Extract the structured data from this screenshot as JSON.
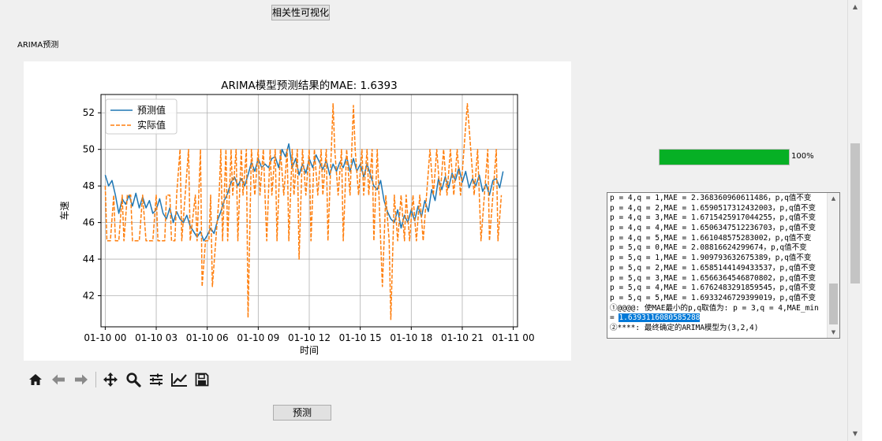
{
  "buttons": {
    "correlation": "相关性可视化",
    "predict": "预测"
  },
  "section_label": "ARIMA预测",
  "progress": {
    "value": 1.0,
    "text": "100%",
    "color": "#06b025"
  },
  "toolbar_icons": [
    "home-icon",
    "back-arrow-icon",
    "forward-arrow-icon",
    "pan-icon",
    "zoom-icon",
    "configure-subplots-icon",
    "edit-axis-icon",
    "save-icon"
  ],
  "log": {
    "lines": [
      "p = 4,q = 1,MAE = 2.368360960611486，p,q值不变",
      "p = 4,q = 2,MAE = 1.6590517312432003，p,q值不变",
      "p = 4,q = 3,MAE = 1.6715425917044255，p,q值不变",
      "p = 4,q = 4,MAE = 1.6506347512236703，p,q值不变",
      "p = 4,q = 5,MAE = 1.661048575283002，p,q值不变",
      "p = 5,q = 0,MAE = 2.08816624299674，p,q值不变",
      "p = 5,q = 1,MAE = 1.909793632675389，p,q值不变",
      "p = 5,q = 2,MAE = 1.6585144149433537，p,q值不变",
      "p = 5,q = 3,MAE = 1.6566364546870802，p,q值不变",
      "p = 5,q = 4,MAE = 1.6762483291859545，p,q值不变",
      "p = 5,q = 5,MAE = 1.6933246729399019，p,q值不变",
      "①@@@@: 使MAE最小的p,q取值为: p = 3,q = 4,MAE_min",
      "= ",
      "②****: 最终确定的ARIMA模型为(3,2,4)"
    ],
    "highlighted": "1.6393116080585288"
  },
  "chart_data": {
    "type": "line",
    "title": "ARIMA模型预测结果的MAE: 1.6393",
    "xlabel": "时间",
    "ylabel": "车速",
    "xticks": [
      "01-10 00",
      "01-10 03",
      "01-10 06",
      "01-10 09",
      "01-10 12",
      "01-10 15",
      "01-10 18",
      "01-10 21",
      "01-11 00"
    ],
    "xlim": [
      -0.25,
      24.25
    ],
    "ylim": [
      40.3,
      53.0
    ],
    "yticks": [
      42,
      44,
      46,
      48,
      50,
      52
    ],
    "grid": true,
    "legend_position": "top-left",
    "series": [
      {
        "name": "预测值",
        "color": "#1f77b4",
        "style": "solid",
        "points": [
          [
            0,
            48.6
          ],
          [
            0.2,
            48.0
          ],
          [
            0.4,
            48.3
          ],
          [
            0.6,
            47.5
          ],
          [
            0.8,
            46.5
          ],
          [
            1,
            47.3
          ],
          [
            1.2,
            47.0
          ],
          [
            1.4,
            47.5
          ],
          [
            1.6,
            46.9
          ],
          [
            1.8,
            47.6
          ],
          [
            2,
            46.8
          ],
          [
            2.2,
            47.4
          ],
          [
            2.4,
            46.8
          ],
          [
            2.6,
            47.2
          ],
          [
            2.8,
            46.5
          ],
          [
            3,
            46.7
          ],
          [
            3.2,
            47.3
          ],
          [
            3.4,
            46.5
          ],
          [
            3.6,
            46.2
          ],
          [
            3.8,
            46.8
          ],
          [
            4,
            46.0
          ],
          [
            4.2,
            46.6
          ],
          [
            4.4,
            46.2
          ],
          [
            4.6,
            46.0
          ],
          [
            4.8,
            46.4
          ],
          [
            5,
            45.8
          ],
          [
            5.2,
            45.5
          ],
          [
            5.4,
            45.2
          ],
          [
            5.6,
            45.5
          ],
          [
            5.8,
            45.0
          ],
          [
            6,
            45.3
          ],
          [
            6.2,
            45.7
          ],
          [
            6.4,
            45.4
          ],
          [
            6.6,
            46.1
          ],
          [
            6.8,
            46.6
          ],
          [
            7,
            47.2
          ],
          [
            7.2,
            47.6
          ],
          [
            7.4,
            48.2
          ],
          [
            7.6,
            48.5
          ],
          [
            7.8,
            48.0
          ],
          [
            8,
            48.4
          ],
          [
            8.2,
            48.0
          ],
          [
            8.4,
            48.6
          ],
          [
            8.6,
            49.3
          ],
          [
            8.8,
            48.8
          ],
          [
            9,
            49.5
          ],
          [
            9.2,
            49.0
          ],
          [
            9.4,
            49.2
          ],
          [
            9.6,
            49.0
          ],
          [
            9.8,
            49.5
          ],
          [
            10,
            49.6
          ],
          [
            10.2,
            49.0
          ],
          [
            10.4,
            50.0
          ],
          [
            10.6,
            49.6
          ],
          [
            10.8,
            50.3
          ],
          [
            11,
            49.0
          ],
          [
            11.2,
            49.5
          ],
          [
            11.4,
            48.6
          ],
          [
            11.6,
            49.2
          ],
          [
            11.8,
            48.7
          ],
          [
            12,
            49.5
          ],
          [
            12.2,
            49.0
          ],
          [
            12.4,
            49.7
          ],
          [
            12.6,
            49.3
          ],
          [
            12.8,
            48.9
          ],
          [
            13,
            49.4
          ],
          [
            13.2,
            48.6
          ],
          [
            13.4,
            49.2
          ],
          [
            13.6,
            48.8
          ],
          [
            13.8,
            49.3
          ],
          [
            14,
            49.0
          ],
          [
            14.2,
            49.6
          ],
          [
            14.4,
            48.8
          ],
          [
            14.6,
            49.5
          ],
          [
            14.8,
            48.8
          ],
          [
            15,
            49.2
          ],
          [
            15.2,
            48.5
          ],
          [
            15.4,
            49.2
          ],
          [
            15.6,
            48.6
          ],
          [
            15.8,
            48.0
          ],
          [
            16,
            47.8
          ],
          [
            16.2,
            48.3
          ],
          [
            16.4,
            47.2
          ],
          [
            16.6,
            46.6
          ],
          [
            16.8,
            46.2
          ],
          [
            17,
            46.0
          ],
          [
            17.2,
            46.7
          ],
          [
            17.4,
            45.7
          ],
          [
            17.6,
            46.4
          ],
          [
            17.8,
            46.0
          ],
          [
            18,
            46.7
          ],
          [
            18.2,
            46.1
          ],
          [
            18.4,
            46.9
          ],
          [
            18.6,
            46.3
          ],
          [
            18.8,
            47.2
          ],
          [
            19,
            46.6
          ],
          [
            19.2,
            47.8
          ],
          [
            19.4,
            47.2
          ],
          [
            19.6,
            48.4
          ],
          [
            19.8,
            47.8
          ],
          [
            20,
            48.5
          ],
          [
            20.2,
            47.9
          ],
          [
            20.4,
            48.7
          ],
          [
            20.6,
            48.3
          ],
          [
            20.8,
            49.0
          ],
          [
            21,
            48.2
          ],
          [
            21.2,
            48.8
          ],
          [
            21.4,
            47.9
          ],
          [
            21.6,
            48.4
          ],
          [
            21.8,
            48.0
          ],
          [
            22,
            48.6
          ],
          [
            22.2,
            47.7
          ],
          [
            22.4,
            48.1
          ],
          [
            22.6,
            47.5
          ],
          [
            22.8,
            48.3
          ],
          [
            23,
            48.4
          ],
          [
            23.2,
            47.9
          ],
          [
            23.4,
            48.8
          ]
        ]
      },
      {
        "name": "实际值",
        "color": "#ff7f0e",
        "style": "dashed",
        "points": [
          [
            0,
            48.0
          ],
          [
            0.1,
            45.0
          ],
          [
            0.3,
            45.0
          ],
          [
            0.5,
            47.5
          ],
          [
            0.6,
            45.0
          ],
          [
            0.8,
            45.0
          ],
          [
            1,
            47.5
          ],
          [
            1.1,
            45.0
          ],
          [
            1.3,
            47.5
          ],
          [
            1.5,
            47.5
          ],
          [
            1.6,
            45.0
          ],
          [
            2,
            45.0
          ],
          [
            2.2,
            47.5
          ],
          [
            2.4,
            45.0
          ],
          [
            2.8,
            45.0
          ],
          [
            3,
            47.5
          ],
          [
            3.1,
            45.0
          ],
          [
            3.5,
            45.0
          ],
          [
            3.6,
            47.5
          ],
          [
            3.8,
            47.5
          ],
          [
            3.9,
            45.0
          ],
          [
            4.1,
            45.0
          ],
          [
            4.2,
            47.5
          ],
          [
            4.4,
            50.0
          ],
          [
            4.5,
            45.0
          ],
          [
            4.7,
            47.5
          ],
          [
            4.9,
            50.0
          ],
          [
            5.0,
            45.0
          ],
          [
            5.3,
            47.5
          ],
          [
            5.4,
            45.0
          ],
          [
            5.6,
            50.0
          ],
          [
            5.7,
            42.5
          ],
          [
            5.9,
            45.0
          ],
          [
            6.1,
            45.0
          ],
          [
            6.2,
            47.5
          ],
          [
            6.3,
            42.5
          ],
          [
            6.5,
            45.0
          ],
          [
            6.7,
            47.5
          ],
          [
            6.8,
            50.0
          ],
          [
            6.9,
            45.0
          ],
          [
            7.1,
            50.0
          ],
          [
            7.2,
            45.0
          ],
          [
            7.4,
            50.0
          ],
          [
            7.5,
            47.5
          ],
          [
            7.7,
            50.0
          ],
          [
            7.8,
            45.0
          ],
          [
            8.0,
            50.0
          ],
          [
            8.1,
            47.5
          ],
          [
            8.3,
            50.0
          ],
          [
            8.4,
            40.8
          ],
          [
            8.6,
            50.0
          ],
          [
            8.8,
            47.5
          ],
          [
            9.0,
            50.0
          ],
          [
            9.1,
            47.5
          ],
          [
            9.3,
            50.0
          ],
          [
            9.5,
            45.0
          ],
          [
            9.7,
            50.0
          ],
          [
            9.8,
            47.5
          ],
          [
            10,
            50.0
          ],
          [
            10.1,
            45.0
          ],
          [
            10.3,
            50.0
          ],
          [
            10.5,
            47.5
          ],
          [
            10.7,
            50.0
          ],
          [
            10.8,
            45.0
          ],
          [
            11.0,
            50.0
          ],
          [
            11.1,
            47.5
          ],
          [
            11.3,
            50.0
          ],
          [
            11.4,
            44.0
          ],
          [
            11.6,
            50.0
          ],
          [
            11.8,
            47.5
          ],
          [
            12,
            50.0
          ],
          [
            12.1,
            45.0
          ],
          [
            12.3,
            50.0
          ],
          [
            12.5,
            47.5
          ],
          [
            12.7,
            50.0
          ],
          [
            12.8,
            47.5
          ],
          [
            13,
            50.0
          ],
          [
            13.1,
            45.0
          ],
          [
            13.3,
            50.0
          ],
          [
            13.4,
            52.5
          ],
          [
            13.5,
            50.0
          ],
          [
            13.7,
            47.5
          ],
          [
            13.9,
            50.0
          ],
          [
            14,
            45.0
          ],
          [
            14.2,
            50.0
          ],
          [
            14.4,
            47.5
          ],
          [
            14.6,
            52.4
          ],
          [
            14.7,
            50.0
          ],
          [
            14.9,
            47.5
          ],
          [
            15.1,
            50.0
          ],
          [
            15.2,
            47.5
          ],
          [
            15.4,
            50.0
          ],
          [
            15.5,
            47.5
          ],
          [
            15.7,
            50.0
          ],
          [
            15.8,
            45.0
          ],
          [
            16.0,
            50.0
          ],
          [
            16.2,
            45.0
          ],
          [
            16.3,
            42.5
          ],
          [
            16.5,
            47.5
          ],
          [
            16.7,
            45.0
          ],
          [
            16.8,
            40.7
          ],
          [
            17.0,
            47.5
          ],
          [
            17.2,
            45.0
          ],
          [
            17.4,
            47.5
          ],
          [
            17.6,
            45.0
          ],
          [
            17.7,
            47.5
          ],
          [
            17.9,
            45.0
          ],
          [
            18.1,
            47.5
          ],
          [
            18.3,
            45.0
          ],
          [
            18.5,
            47.5
          ],
          [
            18.7,
            45.0
          ],
          [
            18.9,
            47.5
          ],
          [
            19.1,
            50.0
          ],
          [
            19.3,
            47.5
          ],
          [
            19.5,
            50.0
          ],
          [
            19.7,
            47.5
          ],
          [
            19.9,
            50.0
          ],
          [
            20.1,
            47.5
          ],
          [
            20.3,
            50.0
          ],
          [
            20.5,
            47.5
          ],
          [
            20.7,
            50.0
          ],
          [
            20.9,
            47.5
          ],
          [
            21.1,
            50.0
          ],
          [
            21.3,
            52.5
          ],
          [
            21.5,
            50.0
          ],
          [
            21.7,
            47.5
          ],
          [
            21.9,
            50.0
          ],
          [
            22.1,
            45.0
          ],
          [
            22.3,
            47.5
          ],
          [
            22.5,
            50.0
          ],
          [
            22.6,
            45.0
          ],
          [
            22.8,
            47.5
          ],
          [
            23,
            50.0
          ],
          [
            23.1,
            45.0
          ],
          [
            23.3,
            47.5
          ]
        ]
      }
    ]
  }
}
